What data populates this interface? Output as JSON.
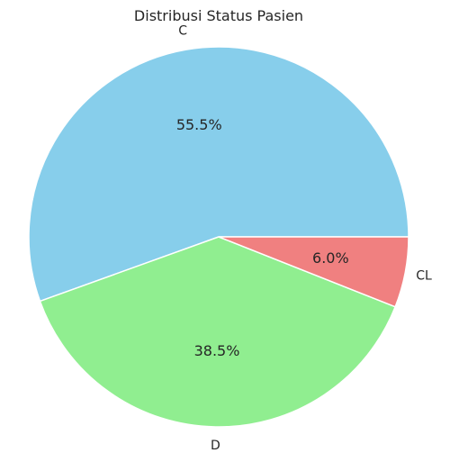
{
  "chart_data": {
    "type": "pie",
    "title": "Distribusi Status Pasien",
    "categories": [
      "C",
      "D",
      "CL"
    ],
    "values": [
      55.5,
      38.5,
      6.0
    ],
    "value_labels": [
      "55.5%",
      "38.5%",
      "6.0%"
    ],
    "colors": [
      "#87CEEB",
      "#90EE90",
      "#F08080"
    ],
    "start_angle_deg": 0,
    "direction": "counterclockwise",
    "legend": "none"
  }
}
